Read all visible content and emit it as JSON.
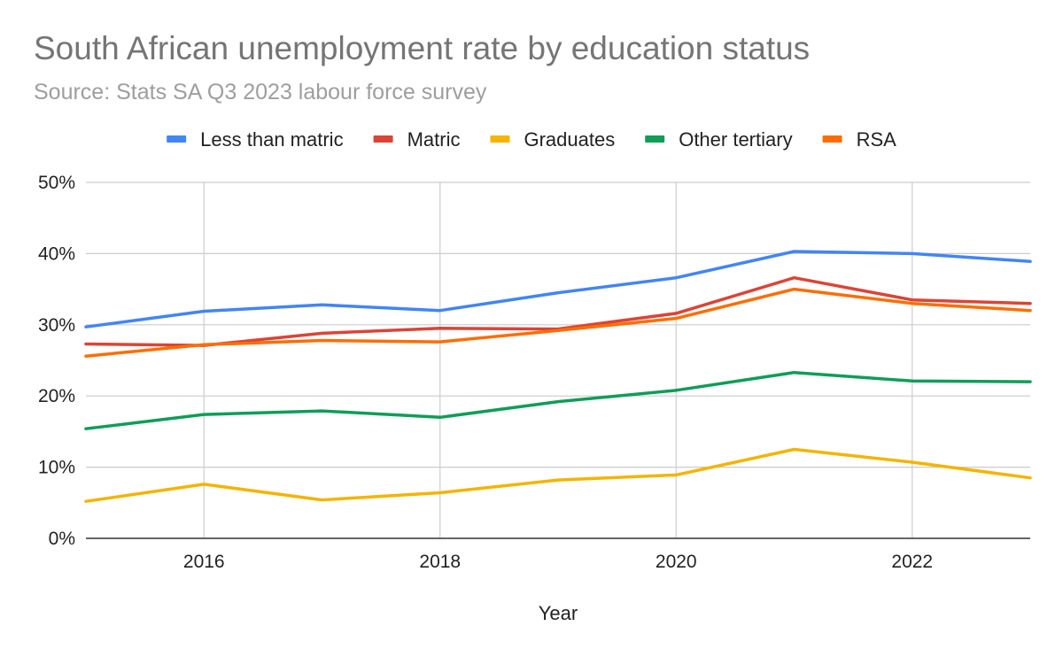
{
  "chart_data": {
    "type": "line",
    "title": "South African unemployment rate by education status",
    "subtitle": "Source: Stats SA Q3 2023 labour force survey",
    "xlabel": "Year",
    "ylabel": "",
    "x": [
      2015,
      2016,
      2017,
      2018,
      2019,
      2020,
      2021,
      2022,
      2023
    ],
    "xlim": [
      2015,
      2023
    ],
    "x_ticks": [
      2016,
      2018,
      2020,
      2022
    ],
    "x_tick_labels": [
      "2016",
      "2018",
      "2020",
      "2022"
    ],
    "ylim": [
      0,
      50
    ],
    "y_ticks": [
      0,
      10,
      20,
      30,
      40,
      50
    ],
    "y_tick_labels": [
      "0%",
      "10%",
      "20%",
      "30%",
      "40%",
      "50%"
    ],
    "grid": true,
    "legend_position": "top",
    "series": [
      {
        "name": "Less than matric",
        "color": "#4285f4",
        "values": [
          29.7,
          31.9,
          32.8,
          32.0,
          34.5,
          36.6,
          40.3,
          40.0,
          38.9
        ]
      },
      {
        "name": "Matric",
        "color": "#db4437",
        "values": [
          27.3,
          27.1,
          28.8,
          29.5,
          29.4,
          31.6,
          36.6,
          33.5,
          33.0
        ]
      },
      {
        "name": "Graduates",
        "color": "#f4b400",
        "values": [
          5.2,
          7.6,
          5.4,
          6.4,
          8.2,
          8.9,
          12.5,
          10.7,
          8.5
        ]
      },
      {
        "name": "Other tertiary",
        "color": "#0f9d58",
        "values": [
          15.4,
          17.4,
          17.9,
          17.0,
          19.2,
          20.8,
          23.3,
          22.1,
          22.0
        ]
      },
      {
        "name": "RSA",
        "color": "#ff6d01",
        "values": [
          25.6,
          27.2,
          27.8,
          27.6,
          29.2,
          30.9,
          35.0,
          33.0,
          32.0
        ]
      }
    ]
  }
}
